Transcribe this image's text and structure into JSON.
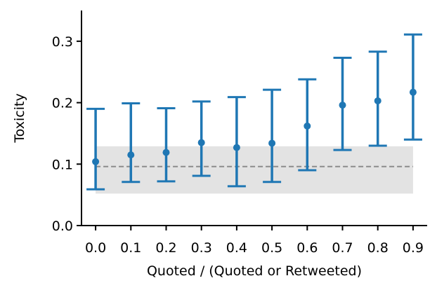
{
  "chart_data": {
    "type": "errorbar",
    "xlabel": "Quoted / (Quoted or Retweeted)",
    "ylabel": "Toxicity",
    "xlim": [
      -0.04,
      0.94
    ],
    "ylim": [
      0.0,
      0.35
    ],
    "x_ticks": [
      0.0,
      0.1,
      0.2,
      0.3,
      0.4,
      0.5,
      0.6,
      0.7,
      0.8,
      0.9
    ],
    "x_tick_labels": [
      "0.0",
      "0.1",
      "0.2",
      "0.3",
      "0.4",
      "0.5",
      "0.6",
      "0.7",
      "0.8",
      "0.9"
    ],
    "y_ticks": [
      0.0,
      0.1,
      0.2,
      0.3
    ],
    "y_tick_labels": [
      "0.0",
      "0.1",
      "0.2",
      "0.3"
    ],
    "grid": false,
    "series": [
      {
        "color": "#1f77b4",
        "points": [
          {
            "x": 0.0,
            "y": 0.104,
            "low": 0.059,
            "high": 0.19
          },
          {
            "x": 0.1,
            "y": 0.115,
            "low": 0.071,
            "high": 0.199
          },
          {
            "x": 0.2,
            "y": 0.119,
            "low": 0.072,
            "high": 0.191
          },
          {
            "x": 0.3,
            "y": 0.135,
            "low": 0.081,
            "high": 0.202
          },
          {
            "x": 0.4,
            "y": 0.127,
            "low": 0.064,
            "high": 0.209
          },
          {
            "x": 0.5,
            "y": 0.134,
            "low": 0.071,
            "high": 0.221
          },
          {
            "x": 0.6,
            "y": 0.162,
            "low": 0.09,
            "high": 0.238
          },
          {
            "x": 0.7,
            "y": 0.196,
            "low": 0.123,
            "high": 0.273
          },
          {
            "x": 0.8,
            "y": 0.203,
            "low": 0.13,
            "high": 0.283
          },
          {
            "x": 0.9,
            "y": 0.217,
            "low": 0.14,
            "high": 0.311
          }
        ]
      }
    ],
    "reference_band": {
      "x_from": 0.0,
      "x_to": 0.9,
      "low": 0.052,
      "high": 0.129,
      "color": "#e3e3e3"
    },
    "reference_line": {
      "y": 0.096,
      "color": "#8c8c8c",
      "style": "dashed"
    }
  }
}
